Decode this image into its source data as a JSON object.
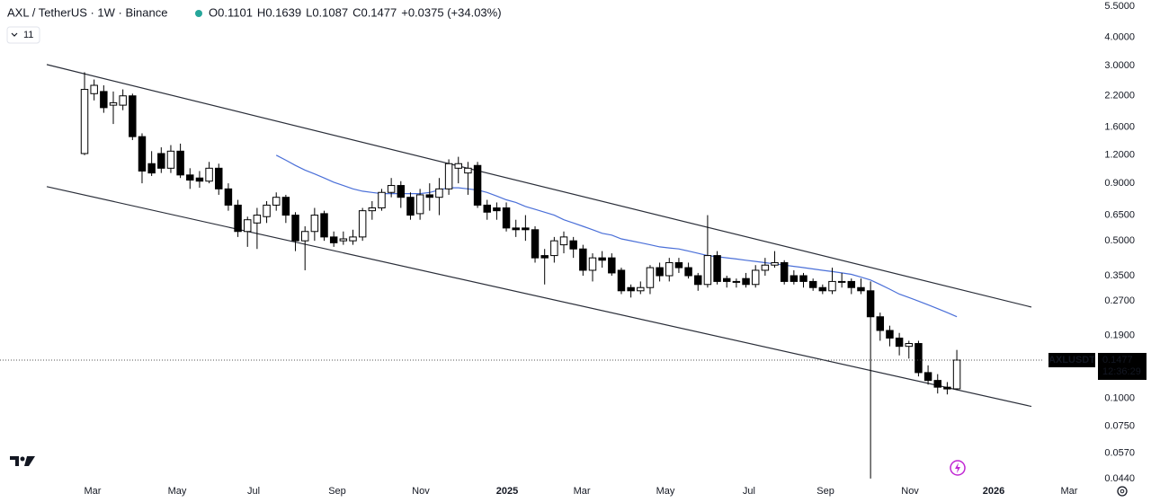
{
  "header": {
    "symbol": "AXL / TetherUS · 1W · Binance",
    "ohlc_labels": [
      "O",
      "H",
      "L",
      "C"
    ],
    "change": "+0.0375 (+34.03%)",
    "indicator_count": "11"
  },
  "chart_data": {
    "type": "candlestick",
    "scale": "log",
    "up_color": "#ffffff",
    "down_color": "#000000",
    "wick_color": "#000000",
    "open": [
      1.22,
      2.25,
      2.3,
      2.0,
      2.0,
      2.2,
      1.45,
      1.1,
      1.22,
      1.05,
      1.25,
      0.98,
      0.95,
      0.92,
      1.05,
      0.85,
      0.72,
      0.55,
      0.6,
      0.64,
      0.72,
      0.78,
      0.65,
      0.5,
      0.55,
      0.66,
      0.52,
      0.5,
      0.5,
      0.52,
      0.68,
      0.7,
      0.82,
      0.88,
      0.78,
      0.66,
      0.8,
      0.78,
      0.85,
      1.05,
      1.0,
      1.08,
      0.72,
      0.7,
      0.7,
      0.57,
      0.57,
      0.56,
      0.43,
      0.43,
      0.48,
      0.5,
      0.46,
      0.37,
      0.42,
      0.42,
      0.37,
      0.31,
      0.3,
      0.31,
      0.38,
      0.35,
      0.4,
      0.38,
      0.35,
      0.32,
      0.43,
      0.34,
      0.33,
      0.34,
      0.32,
      0.37,
      0.39,
      0.4,
      0.35,
      0.35,
      0.33,
      0.31,
      0.3,
      0.33,
      0.33,
      0.31,
      0.3,
      0.23,
      0.2,
      0.185,
      0.17,
      0.175,
      0.13,
      0.12,
      0.112,
      0.1101
    ],
    "high": [
      2.8,
      2.6,
      2.45,
      2.3,
      2.35,
      2.25,
      1.5,
      1.25,
      1.3,
      1.33,
      1.35,
      1.05,
      1.02,
      1.12,
      1.1,
      0.9,
      0.76,
      0.64,
      0.7,
      0.75,
      0.82,
      0.8,
      0.67,
      0.58,
      0.7,
      0.68,
      0.55,
      0.55,
      0.56,
      0.7,
      0.75,
      0.85,
      0.95,
      0.92,
      0.82,
      0.85,
      0.9,
      0.95,
      1.15,
      1.18,
      1.12,
      1.12,
      0.76,
      0.74,
      0.74,
      0.62,
      0.65,
      0.58,
      0.46,
      0.52,
      0.55,
      0.52,
      0.48,
      0.44,
      0.45,
      0.44,
      0.38,
      0.32,
      0.33,
      0.39,
      0.4,
      0.42,
      0.42,
      0.4,
      0.36,
      0.65,
      0.45,
      0.35,
      0.34,
      0.36,
      0.39,
      0.42,
      0.45,
      0.41,
      0.37,
      0.36,
      0.34,
      0.32,
      0.38,
      0.36,
      0.34,
      0.34,
      0.33,
      0.24,
      0.21,
      0.195,
      0.18,
      0.18,
      0.14,
      0.128,
      0.118,
      0.1639
    ],
    "low": [
      1.2,
      2.1,
      1.85,
      1.65,
      1.9,
      1.4,
      0.9,
      0.97,
      1.0,
      1.0,
      0.95,
      0.85,
      0.86,
      0.9,
      0.8,
      0.68,
      0.52,
      0.47,
      0.46,
      0.6,
      0.68,
      0.6,
      0.45,
      0.37,
      0.5,
      0.5,
      0.47,
      0.48,
      0.48,
      0.5,
      0.62,
      0.68,
      0.78,
      0.7,
      0.62,
      0.62,
      0.68,
      0.65,
      0.8,
      0.9,
      0.8,
      0.7,
      0.62,
      0.62,
      0.55,
      0.52,
      0.5,
      0.4,
      0.32,
      0.4,
      0.44,
      0.42,
      0.35,
      0.33,
      0.38,
      0.35,
      0.29,
      0.28,
      0.29,
      0.29,
      0.33,
      0.33,
      0.36,
      0.34,
      0.3,
      0.31,
      0.32,
      0.31,
      0.31,
      0.31,
      0.31,
      0.35,
      0.38,
      0.32,
      0.32,
      0.31,
      0.3,
      0.29,
      0.29,
      0.31,
      0.29,
      0.29,
      0.044,
      0.18,
      0.17,
      0.155,
      0.15,
      0.125,
      0.115,
      0.105,
      0.104,
      0.1087
    ],
    "close": [
      2.35,
      2.45,
      1.95,
      2.05,
      2.2,
      1.45,
      1.02,
      1.0,
      1.05,
      1.25,
      0.98,
      0.93,
      0.92,
      1.05,
      0.85,
      0.72,
      0.55,
      0.62,
      0.65,
      0.72,
      0.78,
      0.65,
      0.5,
      0.55,
      0.65,
      0.52,
      0.49,
      0.51,
      0.52,
      0.68,
      0.7,
      0.82,
      0.88,
      0.78,
      0.65,
      0.8,
      0.78,
      0.85,
      1.1,
      1.1,
      1.05,
      0.72,
      0.67,
      0.68,
      0.57,
      0.56,
      0.56,
      0.42,
      0.42,
      0.5,
      0.52,
      0.46,
      0.37,
      0.42,
      0.41,
      0.36,
      0.3,
      0.3,
      0.31,
      0.38,
      0.35,
      0.4,
      0.38,
      0.35,
      0.32,
      0.43,
      0.33,
      0.33,
      0.33,
      0.32,
      0.37,
      0.39,
      0.4,
      0.33,
      0.33,
      0.33,
      0.31,
      0.3,
      0.33,
      0.33,
      0.31,
      0.3,
      0.23,
      0.2,
      0.185,
      0.17,
      0.175,
      0.13,
      0.12,
      0.112,
      0.11,
      0.1477
    ],
    "ma": {
      "color": "#4a6fd8",
      "values": [
        null,
        null,
        null,
        null,
        null,
        null,
        null,
        null,
        null,
        null,
        null,
        null,
        null,
        null,
        null,
        null,
        null,
        null,
        null,
        null,
        1.2,
        1.14,
        1.08,
        1.03,
        0.99,
        0.95,
        0.91,
        0.88,
        0.85,
        0.83,
        0.82,
        0.81,
        0.81,
        0.81,
        0.81,
        0.81,
        0.82,
        0.84,
        0.86,
        0.86,
        0.85,
        0.84,
        0.82,
        0.79,
        0.76,
        0.74,
        0.71,
        0.69,
        0.67,
        0.65,
        0.62,
        0.6,
        0.58,
        0.56,
        0.54,
        0.53,
        0.51,
        0.5,
        0.49,
        0.48,
        0.47,
        0.465,
        0.46,
        0.45,
        0.44,
        0.43,
        0.425,
        0.42,
        0.415,
        0.41,
        0.405,
        0.4,
        0.395,
        0.39,
        0.385,
        0.38,
        0.375,
        0.37,
        0.365,
        0.36,
        0.355,
        0.345,
        0.335,
        0.32,
        0.305,
        0.29,
        0.28,
        0.27,
        0.26,
        0.25,
        0.24,
        0.23
      ]
    },
    "trend_lines": [
      {
        "x": [
          -3.94,
          98.78
        ],
        "y": [
          3.03,
          0.254
        ]
      },
      {
        "x": [
          -3.94,
          98.78
        ],
        "y": [
          0.87,
          0.092
        ]
      }
    ],
    "price_label": {
      "symbol": "AXLUSDT",
      "countdown": "12:36:29"
    },
    "xlim": [
      -8.82,
      104.69
    ],
    "xticks": [
      {
        "value": 0.84,
        "label": "Mar"
      },
      {
        "value": 9.66,
        "label": "May"
      },
      {
        "value": 17.64,
        "label": "Jul"
      },
      {
        "value": 26.36,
        "label": "Sep"
      },
      {
        "value": 35.08,
        "label": "Nov"
      },
      {
        "value": 44.09,
        "label": "2025"
      },
      {
        "value": 51.88,
        "label": "Mar"
      },
      {
        "value": 60.6,
        "label": "May"
      },
      {
        "value": 69.32,
        "label": "Jul"
      },
      {
        "value": 77.3,
        "label": "Sep"
      },
      {
        "value": 86.12,
        "label": "Nov"
      },
      {
        "value": 94.84,
        "label": "2026"
      },
      {
        "value": 102.72,
        "label": "Mar"
      }
    ],
    "ylim": [
      0.042,
      5.86
    ],
    "yticks": [
      {
        "value": 5.5,
        "label": "5.5000"
      },
      {
        "value": 4,
        "label": "4.0000"
      },
      {
        "value": 3,
        "label": "3.0000"
      },
      {
        "value": 2.2,
        "label": "2.2000"
      },
      {
        "value": 1.6,
        "label": "1.6000"
      },
      {
        "value": 1.2,
        "label": "1.2000"
      },
      {
        "value": 0.9,
        "label": "0.9000"
      },
      {
        "value": 0.65,
        "label": "0.6500"
      },
      {
        "value": 0.5,
        "label": "0.5000"
      },
      {
        "value": 0.35,
        "label": "0.3500"
      },
      {
        "value": 0.27,
        "label": "0.2700"
      },
      {
        "value": 0.19,
        "label": "0.1900"
      },
      {
        "value": 0.1,
        "label": "0.1000"
      },
      {
        "value": 0.075,
        "label": "0.0750"
      },
      {
        "value": 0.057,
        "label": "0.0570"
      },
      {
        "value": 0.044,
        "label": "0.0440"
      }
    ],
    "grid": false
  }
}
